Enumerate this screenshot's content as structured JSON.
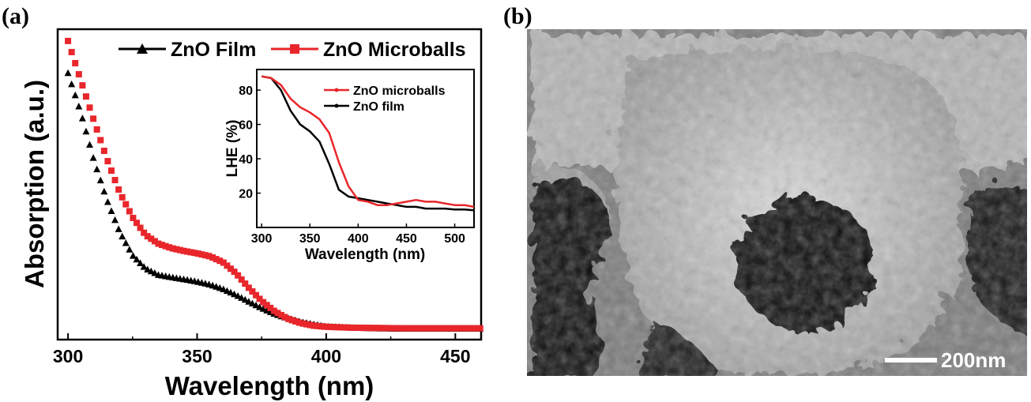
{
  "panels": {
    "a_label": "(a)",
    "b_label": "(b)"
  },
  "chart_data": [
    {
      "type": "scatter",
      "xlabel": "Wavelength (nm)",
      "ylabel": "Absorption (a.u.)",
      "xlim": [
        296,
        460
      ],
      "ylim": [
        0,
        1.0
      ],
      "xticks": [
        "300",
        "350",
        "400",
        "450"
      ],
      "yticks_shown": false,
      "legend_position": "top-right",
      "series": [
        {
          "name": "ZnO Film",
          "marker": "triangle",
          "color": "#000000",
          "x": [
            300,
            305,
            310,
            315,
            320,
            325,
            330,
            335,
            340,
            345,
            350,
            355,
            360,
            365,
            370,
            375,
            380,
            385,
            390,
            395,
            400,
            410,
            420,
            430,
            440,
            450,
            460
          ],
          "y": [
            0.885,
            0.75,
            0.59,
            0.455,
            0.345,
            0.265,
            0.22,
            0.198,
            0.19,
            0.183,
            0.175,
            0.165,
            0.15,
            0.13,
            0.107,
            0.085,
            0.065,
            0.05,
            0.038,
            0.03,
            0.022,
            0.018,
            0.016,
            0.015,
            0.015,
            0.015,
            0.015
          ]
        },
        {
          "name": "ZnO Microballs",
          "marker": "square",
          "color": "#e8262b",
          "x": [
            300,
            305,
            310,
            315,
            320,
            325,
            330,
            335,
            340,
            345,
            350,
            355,
            360,
            365,
            370,
            375,
            380,
            385,
            390,
            395,
            400,
            410,
            420,
            430,
            440,
            450,
            460
          ],
          "y": [
            0.995,
            0.86,
            0.725,
            0.595,
            0.48,
            0.395,
            0.335,
            0.305,
            0.29,
            0.28,
            0.272,
            0.262,
            0.242,
            0.205,
            0.155,
            0.11,
            0.075,
            0.05,
            0.035,
            0.026,
            0.022,
            0.019,
            0.018,
            0.017,
            0.017,
            0.017,
            0.017
          ]
        }
      ]
    },
    {
      "type": "line",
      "xlabel": "Wavelength (nm)",
      "ylabel": "LHE (%)",
      "xlim": [
        295,
        520
      ],
      "ylim": [
        0,
        92
      ],
      "xticks": [
        "300",
        "350",
        "400",
        "450",
        "500"
      ],
      "yticks": [
        "20",
        "40",
        "60",
        "80"
      ],
      "legend_position": "top-right",
      "series": [
        {
          "name": "ZnO microballs",
          "color": "#e8262b",
          "x": [
            300,
            310,
            320,
            330,
            340,
            350,
            360,
            370,
            380,
            390,
            400,
            410,
            420,
            430,
            440,
            450,
            460,
            470,
            480,
            490,
            500,
            510,
            520
          ],
          "y": [
            88,
            87,
            83,
            75,
            70,
            67,
            63,
            55,
            38,
            24,
            16,
            15,
            13,
            13,
            14,
            15,
            16,
            15,
            15,
            14,
            13,
            13,
            12
          ]
        },
        {
          "name": "ZnO film",
          "color": "#000000",
          "x": [
            300,
            310,
            320,
            330,
            340,
            350,
            360,
            370,
            380,
            390,
            400,
            410,
            420,
            430,
            440,
            450,
            460,
            470,
            480,
            490,
            500,
            510,
            520
          ],
          "y": [
            88,
            87,
            80,
            68,
            60,
            56,
            50,
            37,
            22,
            18,
            17,
            16,
            15,
            14,
            13,
            12,
            12,
            11,
            11,
            11,
            10.5,
            10.5,
            10
          ]
        }
      ]
    }
  ],
  "sem": {
    "scalebar_label": "200nm"
  }
}
